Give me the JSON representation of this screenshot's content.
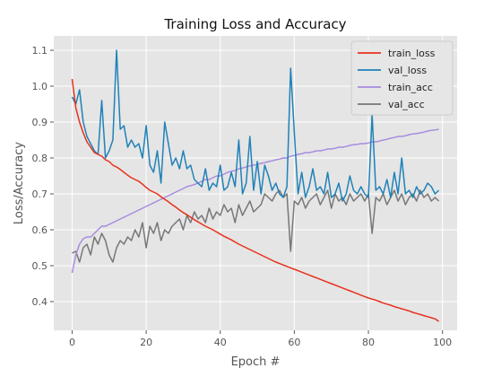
{
  "chart_data": {
    "type": "line",
    "title": "Training Loss and Accuracy",
    "xlabel": "Epoch #",
    "ylabel": "Loss/Accuracy",
    "xlim": [
      -4.95,
      103.95
    ],
    "ylim": [
      0.32,
      1.14
    ],
    "xticks": [
      0,
      20,
      40,
      60,
      80,
      100
    ],
    "yticks": [
      0.4,
      0.5,
      0.6,
      0.7,
      0.8,
      0.9,
      1.0,
      1.1
    ],
    "grid": true,
    "legend_position": "top-right",
    "background": "#e5e5e5",
    "x": [
      0,
      1,
      2,
      3,
      4,
      5,
      6,
      7,
      8,
      9,
      10,
      11,
      12,
      13,
      14,
      15,
      16,
      17,
      18,
      19,
      20,
      21,
      22,
      23,
      24,
      25,
      26,
      27,
      28,
      29,
      30,
      31,
      32,
      33,
      34,
      35,
      36,
      37,
      38,
      39,
      40,
      41,
      42,
      43,
      44,
      45,
      46,
      47,
      48,
      49,
      50,
      51,
      52,
      53,
      54,
      55,
      56,
      57,
      58,
      59,
      60,
      61,
      62,
      63,
      64,
      65,
      66,
      67,
      68,
      69,
      70,
      71,
      72,
      73,
      74,
      75,
      76,
      77,
      78,
      79,
      80,
      81,
      82,
      83,
      84,
      85,
      86,
      87,
      88,
      89,
      90,
      91,
      92,
      93,
      94,
      95,
      96,
      97,
      98,
      99
    ],
    "series": [
      {
        "name": "train_loss",
        "color": "#e8301c",
        "values": [
          1.02,
          0.94,
          0.9,
          0.87,
          0.845,
          0.83,
          0.815,
          0.81,
          0.805,
          0.795,
          0.79,
          0.78,
          0.775,
          0.768,
          0.76,
          0.752,
          0.745,
          0.74,
          0.735,
          0.727,
          0.718,
          0.71,
          0.705,
          0.7,
          0.692,
          0.685,
          0.678,
          0.67,
          0.663,
          0.655,
          0.648,
          0.642,
          0.635,
          0.628,
          0.622,
          0.616,
          0.61,
          0.605,
          0.6,
          0.594,
          0.588,
          0.582,
          0.577,
          0.572,
          0.566,
          0.56,
          0.555,
          0.55,
          0.545,
          0.54,
          0.535,
          0.53,
          0.525,
          0.52,
          0.515,
          0.51,
          0.506,
          0.502,
          0.498,
          0.494,
          0.49,
          0.486,
          0.482,
          0.478,
          0.474,
          0.47,
          0.466,
          0.462,
          0.458,
          0.454,
          0.45,
          0.446,
          0.442,
          0.438,
          0.434,
          0.43,
          0.426,
          0.422,
          0.418,
          0.414,
          0.41,
          0.407,
          0.404,
          0.4,
          0.396,
          0.393,
          0.39,
          0.386,
          0.383,
          0.38,
          0.377,
          0.374,
          0.37,
          0.367,
          0.364,
          0.361,
          0.358,
          0.355,
          0.352,
          0.345
        ]
      },
      {
        "name": "val_loss",
        "color": "#1f82b8",
        "values": [
          0.97,
          0.95,
          0.99,
          0.9,
          0.86,
          0.84,
          0.82,
          0.81,
          0.96,
          0.8,
          0.82,
          0.85,
          1.1,
          0.88,
          0.89,
          0.83,
          0.85,
          0.83,
          0.84,
          0.8,
          0.89,
          0.78,
          0.76,
          0.82,
          0.73,
          0.9,
          0.84,
          0.78,
          0.8,
          0.77,
          0.82,
          0.77,
          0.78,
          0.74,
          0.73,
          0.72,
          0.77,
          0.71,
          0.73,
          0.72,
          0.78,
          0.71,
          0.72,
          0.76,
          0.72,
          0.85,
          0.7,
          0.73,
          0.86,
          0.71,
          0.79,
          0.7,
          0.78,
          0.75,
          0.71,
          0.73,
          0.7,
          0.69,
          0.72,
          1.05,
          0.87,
          0.7,
          0.76,
          0.69,
          0.72,
          0.77,
          0.71,
          0.72,
          0.7,
          0.76,
          0.69,
          0.7,
          0.73,
          0.68,
          0.7,
          0.75,
          0.71,
          0.7,
          0.72,
          0.7,
          0.69,
          0.92,
          0.71,
          0.72,
          0.7,
          0.74,
          0.69,
          0.76,
          0.7,
          0.8,
          0.7,
          0.71,
          0.69,
          0.72,
          0.7,
          0.71,
          0.73,
          0.72,
          0.7,
          0.71
        ]
      },
      {
        "name": "train_acc",
        "color": "#a78bdf",
        "values": [
          0.48,
          0.53,
          0.56,
          0.575,
          0.58,
          0.58,
          0.59,
          0.6,
          0.61,
          0.61,
          0.615,
          0.62,
          0.625,
          0.63,
          0.635,
          0.64,
          0.645,
          0.65,
          0.655,
          0.66,
          0.665,
          0.67,
          0.675,
          0.68,
          0.685,
          0.69,
          0.695,
          0.7,
          0.705,
          0.71,
          0.715,
          0.72,
          0.723,
          0.726,
          0.73,
          0.735,
          0.74,
          0.74,
          0.745,
          0.75,
          0.75,
          0.755,
          0.76,
          0.763,
          0.765,
          0.77,
          0.772,
          0.775,
          0.778,
          0.78,
          0.782,
          0.785,
          0.787,
          0.79,
          0.792,
          0.795,
          0.797,
          0.8,
          0.8,
          0.805,
          0.807,
          0.81,
          0.812,
          0.815,
          0.815,
          0.817,
          0.82,
          0.82,
          0.822,
          0.825,
          0.825,
          0.827,
          0.83,
          0.83,
          0.832,
          0.835,
          0.837,
          0.838,
          0.84,
          0.84,
          0.842,
          0.845,
          0.845,
          0.847,
          0.85,
          0.852,
          0.855,
          0.857,
          0.86,
          0.86,
          0.862,
          0.865,
          0.867,
          0.868,
          0.87,
          0.872,
          0.875,
          0.877,
          0.878,
          0.88
        ]
      },
      {
        "name": "val_acc",
        "color": "#777777",
        "values": [
          0.535,
          0.54,
          0.51,
          0.55,
          0.56,
          0.53,
          0.58,
          0.56,
          0.59,
          0.57,
          0.53,
          0.51,
          0.55,
          0.57,
          0.56,
          0.58,
          0.57,
          0.6,
          0.58,
          0.62,
          0.55,
          0.61,
          0.59,
          0.62,
          0.57,
          0.6,
          0.59,
          0.61,
          0.62,
          0.63,
          0.6,
          0.64,
          0.62,
          0.65,
          0.63,
          0.64,
          0.62,
          0.66,
          0.63,
          0.65,
          0.64,
          0.67,
          0.65,
          0.66,
          0.62,
          0.67,
          0.64,
          0.66,
          0.68,
          0.65,
          0.66,
          0.67,
          0.7,
          0.69,
          0.68,
          0.7,
          0.71,
          0.69,
          0.7,
          0.54,
          0.68,
          0.67,
          0.69,
          0.66,
          0.68,
          0.69,
          0.7,
          0.67,
          0.69,
          0.71,
          0.66,
          0.7,
          0.68,
          0.69,
          0.67,
          0.7,
          0.68,
          0.69,
          0.7,
          0.68,
          0.7,
          0.59,
          0.69,
          0.68,
          0.7,
          0.67,
          0.69,
          0.71,
          0.68,
          0.7,
          0.67,
          0.69,
          0.7,
          0.68,
          0.71,
          0.69,
          0.7,
          0.68,
          0.69,
          0.68
        ]
      }
    ]
  }
}
